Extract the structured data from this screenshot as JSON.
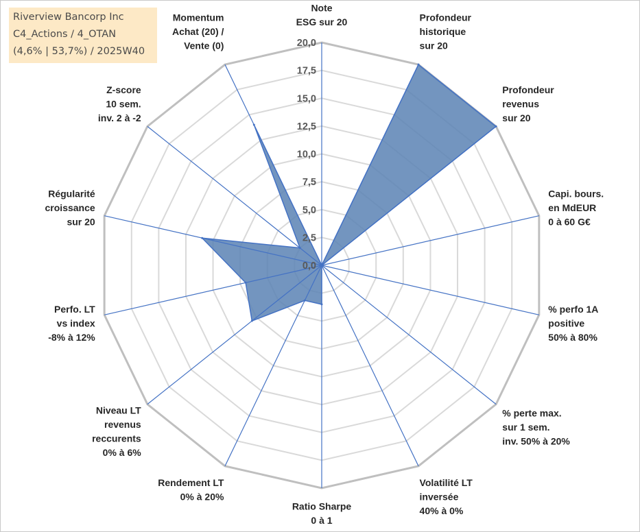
{
  "header": {
    "line1": "Riverview Bancorp Inc",
    "line2": "C4_Actions / 4_OTAN",
    "line3": "(4,6% | 53,7%) / 2025W40"
  },
  "colors": {
    "fill": "#5a82b4",
    "stroke": "#4472c4",
    "spoke": "#4472c4",
    "ring_outer": "#bfbfbf",
    "ring_inner": "#d9d9d9",
    "header_bg": "#fde9c6"
  },
  "chart_data": {
    "type": "radar",
    "title": "",
    "ylim": [
      0,
      20
    ],
    "tick_step": 2.5,
    "tick_labels": [
      "0,0",
      "2,5",
      "5,0",
      "7,5",
      "10,0",
      "12,5",
      "15,0",
      "17,5",
      "20,0"
    ],
    "grid": true,
    "legend": "none",
    "categories": [
      [
        "Note",
        "ESG sur 20"
      ],
      [
        "Profondeur",
        "historique",
        "sur 20"
      ],
      [
        "Profondeur",
        "revenus",
        "sur 20"
      ],
      [
        "Capi. bours.",
        "en MdEUR",
        "0 à 60 G€"
      ],
      [
        "% perfo 1A",
        "positive",
        "50% à 80%"
      ],
      [
        "% perte max.",
        "sur 1 sem.",
        "inv. 50% à 20%"
      ],
      [
        "Volatilité LT",
        "inversée",
        "40% à 0%"
      ],
      [
        "Ratio Sharpe",
        "0 à 1"
      ],
      [
        "Rendement LT",
        "0% à 20%"
      ],
      [
        "Niveau LT",
        "revenus",
        "reccurents",
        "0% à 6%"
      ],
      [
        "Perfo. LT",
        "vs index",
        "-8% à 12%"
      ],
      [
        "Régularité",
        "croissance",
        "sur 20"
      ],
      [
        "Z-score",
        "10 sem.",
        "inv. 2 à -2"
      ],
      [
        "Momentum",
        "Achat (20) /",
        "Vente (0)"
      ]
    ],
    "series": [
      {
        "values": [
          0,
          20,
          20,
          0,
          0,
          0,
          0,
          3.5,
          3.5,
          8,
          7,
          11,
          2.5,
          14
        ]
      }
    ]
  }
}
